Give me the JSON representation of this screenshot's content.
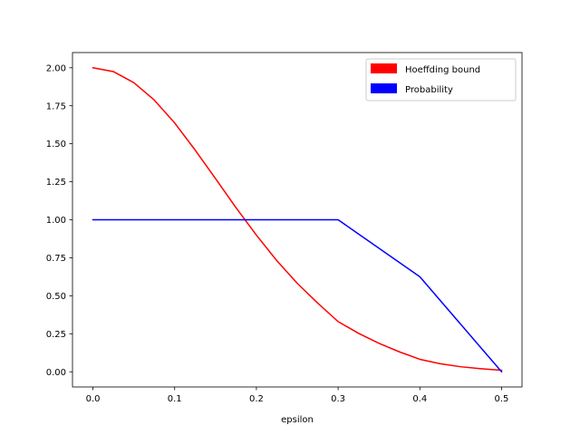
{
  "chart_data": {
    "type": "line",
    "title": "",
    "xlabel": "epsilon",
    "ylabel": "",
    "xlim": [
      -0.025,
      0.525
    ],
    "ylim": [
      -0.1,
      2.1
    ],
    "x_ticks": [
      0.0,
      0.1,
      0.2,
      0.3,
      0.4,
      0.5
    ],
    "x_tick_labels": [
      "0.0",
      "0.1",
      "0.2",
      "0.3",
      "0.4",
      "0.5"
    ],
    "y_ticks": [
      0.0,
      0.25,
      0.5,
      0.75,
      1.0,
      1.25,
      1.5,
      1.75,
      2.0
    ],
    "y_tick_labels": [
      "0.00",
      "0.25",
      "0.50",
      "0.75",
      "1.00",
      "1.25",
      "1.50",
      "1.75",
      "2.00"
    ],
    "grid": false,
    "legend_position": "top-right",
    "series": [
      {
        "name": "Hoeffding bound",
        "color": "#ff0000",
        "x": [
          0.0,
          0.025,
          0.05,
          0.075,
          0.1,
          0.125,
          0.15,
          0.175,
          0.2,
          0.225,
          0.25,
          0.275,
          0.3,
          0.325,
          0.35,
          0.375,
          0.4,
          0.425,
          0.45,
          0.475,
          0.5
        ],
        "y": [
          2.0,
          1.975,
          1.902,
          1.788,
          1.637,
          1.459,
          1.271,
          1.08,
          0.899,
          0.731,
          0.582,
          0.452,
          0.33,
          0.253,
          0.187,
          0.131,
          0.082,
          0.053,
          0.033,
          0.02,
          0.01
        ]
      },
      {
        "name": "Probability",
        "color": "#0000ff",
        "x": [
          0.0,
          0.3,
          0.4,
          0.5
        ],
        "y": [
          1.0,
          1.0,
          0.625,
          0.0
        ]
      }
    ]
  }
}
